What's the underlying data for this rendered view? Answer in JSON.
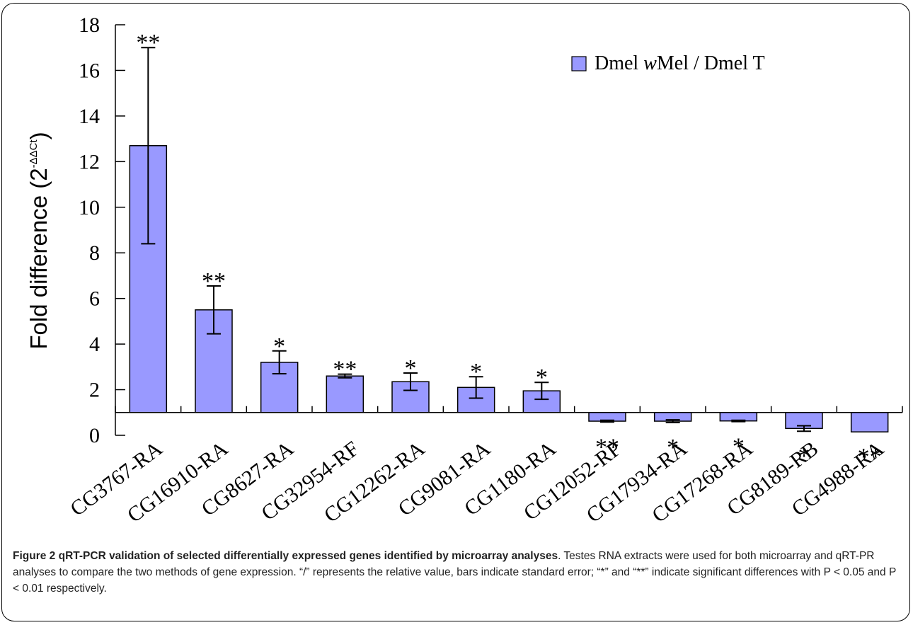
{
  "chart_data": {
    "type": "bar",
    "categories": [
      "CG3767-RA",
      "CG16910-RA",
      "CG8627-RA",
      "CG32954-RF",
      "CG12262-RA",
      "CG9081-RA",
      "CG1180-RA",
      "CG12052-RP",
      "CG17934-RA",
      "CG17268-RA",
      "CG8189-RB",
      "CG4988-RA"
    ],
    "series": [
      {
        "name": "Dmel wMel / Dmel T",
        "values": [
          12.7,
          5.5,
          3.2,
          2.6,
          2.35,
          2.1,
          1.95,
          0.62,
          0.62,
          0.63,
          0.3,
          0.15
        ],
        "errors": [
          4.3,
          1.05,
          0.5,
          0.08,
          0.38,
          0.47,
          0.37,
          0.04,
          0.06,
          0.03,
          0.12,
          0.0
        ],
        "significance": [
          "**",
          "**",
          "*",
          "**",
          "*",
          "*",
          "*",
          "**",
          "*",
          "*",
          "*",
          "**"
        ]
      }
    ],
    "baseline": 1,
    "ylim": [
      0,
      18
    ],
    "yticks": [
      "0",
      "2",
      "4",
      "6",
      "8",
      "10",
      "12",
      "14",
      "16",
      "18"
    ],
    "ylabel": "Fold difference (2",
    "ylabel_superscript": "-ΔΔCt",
    "ylabel_close": ")",
    "legend": {
      "label_prefix": "Dmel ",
      "label_italic": "w",
      "label_suffix": "Mel / Dmel T",
      "position": "top-right"
    },
    "colors": {
      "bar": "#9999ff",
      "bar_stroke": "#000000",
      "axis": "#000000"
    }
  },
  "caption": {
    "title": "Figure 2 qRT-PCR validation of selected differentially expressed genes identified by microarray analyses",
    "body": ". Testes RNA extracts were used for both microarray and qRT-PR analyses to compare the two methods of gene expression. “/” represents the relative value, bars indicate standard error; “*” and “**” indicate significant differences with P < 0.05 and P < 0.01 respectively."
  }
}
